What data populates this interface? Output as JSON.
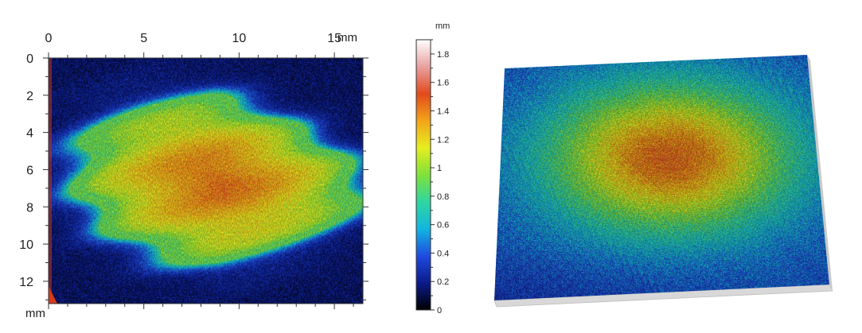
{
  "chart_data": [
    {
      "type": "heatmap",
      "title": "",
      "x_unit": "mm",
      "y_unit": "mm",
      "x_ticks": [
        0,
        5,
        10,
        15
      ],
      "y_ticks": [
        0,
        2,
        4,
        6,
        8,
        10,
        12
      ],
      "xlim": [
        0,
        16.5
      ],
      "ylim": [
        0,
        13.2
      ],
      "y_inverted": true,
      "value_range_mm": [
        0,
        1.9
      ],
      "background_value_mm": 0.15,
      "feature": {
        "shape": "elongated blob",
        "x_extent_mm": [
          1.5,
          16.2
        ],
        "y_extent_mm": [
          2.2,
          11.0
        ],
        "peak_value_mm": 1.45,
        "rim_value_mm": 0.9
      }
    },
    {
      "type": "colorbar",
      "unit": "mm",
      "ticks": [
        0,
        0.2,
        0.4,
        0.6,
        0.8,
        1,
        1.2,
        1.4,
        1.6,
        1.8
      ],
      "tick_labels": [
        "0",
        "0.2",
        "0.4",
        "0.6",
        "0.8",
        "1",
        "1.2",
        "1.4",
        "1.6",
        "1.8"
      ],
      "range": [
        0,
        1.9
      ],
      "colors": [
        "#000000",
        "#0b1a8a",
        "#1f4be0",
        "#12b6e0",
        "#2fd6a0",
        "#7fe13a",
        "#e6ee1e",
        "#f3a41a",
        "#e24a1c",
        "#e8a0a0",
        "#ffffff"
      ]
    },
    {
      "type": "surface",
      "title": "",
      "description_values": {
        "base_value_mm": 0.4,
        "peak_value_mm": 1.45
      }
    }
  ]
}
